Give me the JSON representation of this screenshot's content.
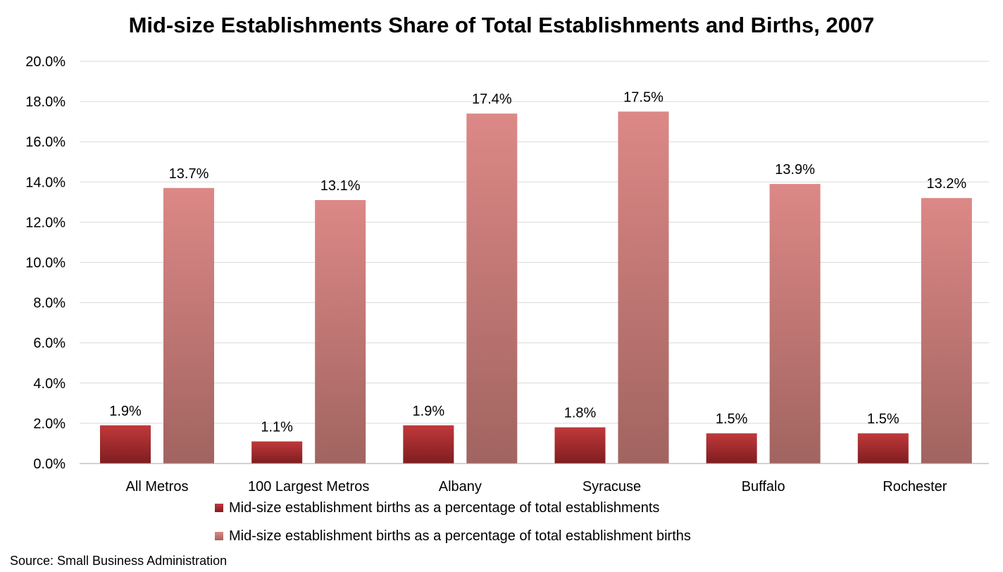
{
  "title": "Mid-size Establishments Share of Total Establishments and Births, 2007",
  "source": "Source: Small Business Administration",
  "colors": {
    "series1_top": "#c0393b",
    "series1_bottom": "#7f1d1f",
    "series2_top": "#dc8886",
    "series2_bottom": "#a16460",
    "grid": "#d9d9d9",
    "axis": "#a6a6a6"
  },
  "legend": [
    {
      "label": "Mid-size establishment births as a percentage of total establishments",
      "icon": "dark-red-square"
    },
    {
      "label": "Mid-size establishment births as a percentage of total establishment births",
      "icon": "light-red-square"
    }
  ],
  "chart_data": {
    "type": "bar",
    "title": "Mid-size Establishments Share of Total Establishments and Births, 2007",
    "categories": [
      "All Metros",
      "100 Largest Metros",
      "Albany",
      "Syracuse",
      "Buffalo",
      "Rochester"
    ],
    "series": [
      {
        "name": "Mid-size establishment births as a percentage of total establishments",
        "values": [
          1.9,
          1.1,
          1.9,
          1.8,
          1.5,
          1.5
        ],
        "labels": [
          "1.9%",
          "1.1%",
          "1.9%",
          "1.8%",
          "1.5%",
          "1.5%"
        ]
      },
      {
        "name": "Mid-size establishment births as a percentage of total establishment births",
        "values": [
          13.7,
          13.1,
          17.4,
          17.5,
          13.9,
          13.2
        ],
        "labels": [
          "13.7%",
          "13.1%",
          "17.4%",
          "17.5%",
          "13.9%",
          "13.2%"
        ]
      }
    ],
    "yticks": [
      "0.0%",
      "2.0%",
      "4.0%",
      "6.0%",
      "8.0%",
      "10.0%",
      "12.0%",
      "14.0%",
      "16.0%",
      "18.0%",
      "20.0%"
    ],
    "ylim": [
      0,
      20
    ],
    "ytick_step": 2,
    "grid": true,
    "legend_position": "bottom"
  }
}
